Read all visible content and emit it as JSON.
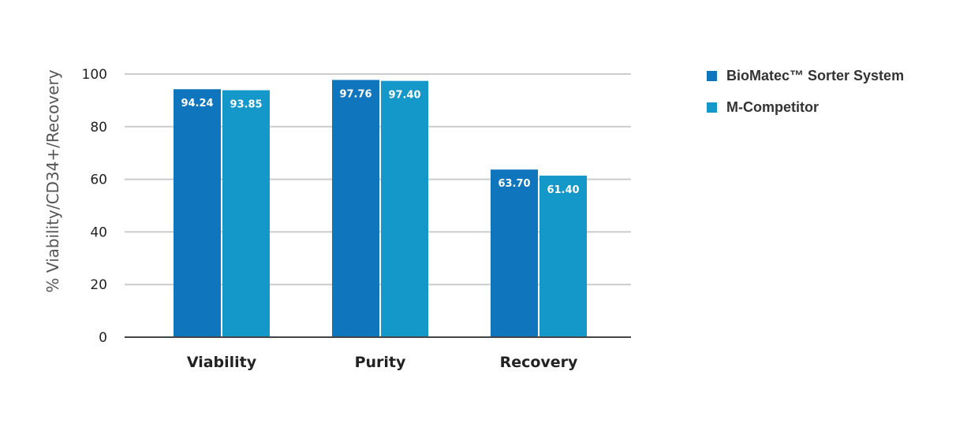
{
  "chart_data": {
    "type": "bar",
    "title": "",
    "xlabel": "",
    "ylabel": "% Viability/CD34+/Recovery",
    "categories": [
      "Viability",
      "Purity",
      "Recovery"
    ],
    "series": [
      {
        "name": "BioMatec™ Sorter System",
        "color": "#0f75bc",
        "values": [
          94.24,
          97.76,
          63.7
        ],
        "labels": [
          "94.24",
          "97.76",
          "63.70"
        ]
      },
      {
        "name": "M-Competitor",
        "color": "#1497c9",
        "values": [
          93.85,
          97.4,
          61.4
        ],
        "labels": [
          "93.85",
          "97.40",
          "61.40"
        ]
      }
    ],
    "ylim": [
      0,
      100
    ],
    "yticks": [
      0,
      20,
      40,
      60,
      80,
      100
    ],
    "ytick_labels": [
      "0",
      "20",
      "40",
      "60",
      "80",
      "100"
    ],
    "grid": true,
    "legend_position": "top-right",
    "colors": {
      "gridline": "#cccccc",
      "axis": "#444444"
    }
  }
}
